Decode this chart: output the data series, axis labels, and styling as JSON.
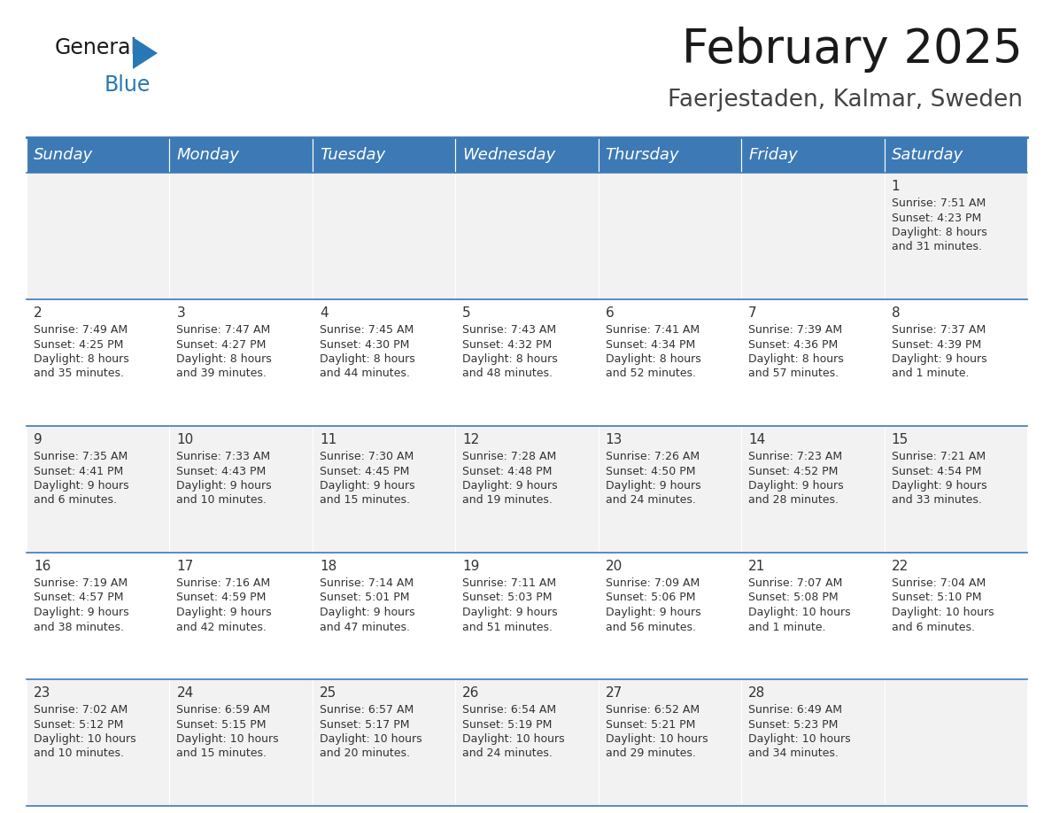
{
  "title": "February 2025",
  "subtitle": "Faerjestaden, Kalmar, Sweden",
  "header_bg": "#3d7ab5",
  "header_text": "#ffffff",
  "row_bg_light": "#f2f2f2",
  "row_bg_white": "#ffffff",
  "border_color": "#3d7ab5",
  "text_color": "#333333",
  "day_headers": [
    "Sunday",
    "Monday",
    "Tuesday",
    "Wednesday",
    "Thursday",
    "Friday",
    "Saturday"
  ],
  "calendar_data": [
    [
      null,
      null,
      null,
      null,
      null,
      null,
      {
        "day": "1",
        "sunrise": "7:51 AM",
        "sunset": "4:23 PM",
        "daylight": "8 hours",
        "daylight2": "and 31 minutes."
      }
    ],
    [
      {
        "day": "2",
        "sunrise": "7:49 AM",
        "sunset": "4:25 PM",
        "daylight": "8 hours",
        "daylight2": "and 35 minutes."
      },
      {
        "day": "3",
        "sunrise": "7:47 AM",
        "sunset": "4:27 PM",
        "daylight": "8 hours",
        "daylight2": "and 39 minutes."
      },
      {
        "day": "4",
        "sunrise": "7:45 AM",
        "sunset": "4:30 PM",
        "daylight": "8 hours",
        "daylight2": "and 44 minutes."
      },
      {
        "day": "5",
        "sunrise": "7:43 AM",
        "sunset": "4:32 PM",
        "daylight": "8 hours",
        "daylight2": "and 48 minutes."
      },
      {
        "day": "6",
        "sunrise": "7:41 AM",
        "sunset": "4:34 PM",
        "daylight": "8 hours",
        "daylight2": "and 52 minutes."
      },
      {
        "day": "7",
        "sunrise": "7:39 AM",
        "sunset": "4:36 PM",
        "daylight": "8 hours",
        "daylight2": "and 57 minutes."
      },
      {
        "day": "8",
        "sunrise": "7:37 AM",
        "sunset": "4:39 PM",
        "daylight": "9 hours",
        "daylight2": "and 1 minute."
      }
    ],
    [
      {
        "day": "9",
        "sunrise": "7:35 AM",
        "sunset": "4:41 PM",
        "daylight": "9 hours",
        "daylight2": "and 6 minutes."
      },
      {
        "day": "10",
        "sunrise": "7:33 AM",
        "sunset": "4:43 PM",
        "daylight": "9 hours",
        "daylight2": "and 10 minutes."
      },
      {
        "day": "11",
        "sunrise": "7:30 AM",
        "sunset": "4:45 PM",
        "daylight": "9 hours",
        "daylight2": "and 15 minutes."
      },
      {
        "day": "12",
        "sunrise": "7:28 AM",
        "sunset": "4:48 PM",
        "daylight": "9 hours",
        "daylight2": "and 19 minutes."
      },
      {
        "day": "13",
        "sunrise": "7:26 AM",
        "sunset": "4:50 PM",
        "daylight": "9 hours",
        "daylight2": "and 24 minutes."
      },
      {
        "day": "14",
        "sunrise": "7:23 AM",
        "sunset": "4:52 PM",
        "daylight": "9 hours",
        "daylight2": "and 28 minutes."
      },
      {
        "day": "15",
        "sunrise": "7:21 AM",
        "sunset": "4:54 PM",
        "daylight": "9 hours",
        "daylight2": "and 33 minutes."
      }
    ],
    [
      {
        "day": "16",
        "sunrise": "7:19 AM",
        "sunset": "4:57 PM",
        "daylight": "9 hours",
        "daylight2": "and 38 minutes."
      },
      {
        "day": "17",
        "sunrise": "7:16 AM",
        "sunset": "4:59 PM",
        "daylight": "9 hours",
        "daylight2": "and 42 minutes."
      },
      {
        "day": "18",
        "sunrise": "7:14 AM",
        "sunset": "5:01 PM",
        "daylight": "9 hours",
        "daylight2": "and 47 minutes."
      },
      {
        "day": "19",
        "sunrise": "7:11 AM",
        "sunset": "5:03 PM",
        "daylight": "9 hours",
        "daylight2": "and 51 minutes."
      },
      {
        "day": "20",
        "sunrise": "7:09 AM",
        "sunset": "5:06 PM",
        "daylight": "9 hours",
        "daylight2": "and 56 minutes."
      },
      {
        "day": "21",
        "sunrise": "7:07 AM",
        "sunset": "5:08 PM",
        "daylight": "10 hours",
        "daylight2": "and 1 minute."
      },
      {
        "day": "22",
        "sunrise": "7:04 AM",
        "sunset": "5:10 PM",
        "daylight": "10 hours",
        "daylight2": "and 6 minutes."
      }
    ],
    [
      {
        "day": "23",
        "sunrise": "7:02 AM",
        "sunset": "5:12 PM",
        "daylight": "10 hours",
        "daylight2": "and 10 minutes."
      },
      {
        "day": "24",
        "sunrise": "6:59 AM",
        "sunset": "5:15 PM",
        "daylight": "10 hours",
        "daylight2": "and 15 minutes."
      },
      {
        "day": "25",
        "sunrise": "6:57 AM",
        "sunset": "5:17 PM",
        "daylight": "10 hours",
        "daylight2": "and 20 minutes."
      },
      {
        "day": "26",
        "sunrise": "6:54 AM",
        "sunset": "5:19 PM",
        "daylight": "10 hours",
        "daylight2": "and 24 minutes."
      },
      {
        "day": "27",
        "sunrise": "6:52 AM",
        "sunset": "5:21 PM",
        "daylight": "10 hours",
        "daylight2": "and 29 minutes."
      },
      {
        "day": "28",
        "sunrise": "6:49 AM",
        "sunset": "5:23 PM",
        "daylight": "10 hours",
        "daylight2": "and 34 minutes."
      },
      null
    ]
  ]
}
